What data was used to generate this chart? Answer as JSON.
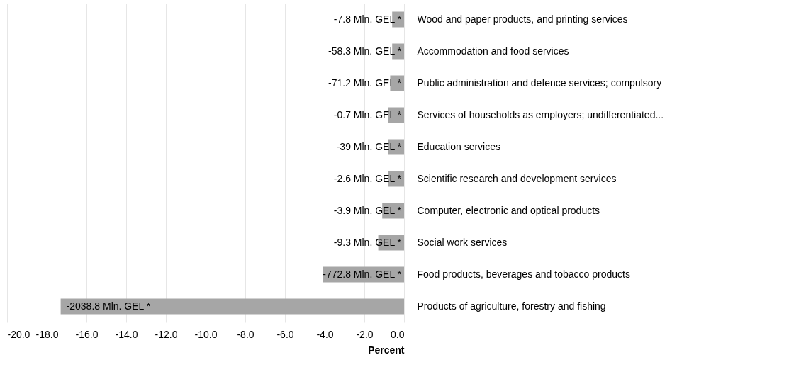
{
  "chart_data": {
    "type": "bar",
    "orientation": "horizontal",
    "xlabel": "Percent",
    "categories": [
      "Wood and paper products, and printing services",
      "Accommodation and food services",
      "Public administration and defence services; compulsory",
      "Services of households as employers; undifferentiated...",
      "Education services",
      "Scientific research and development services",
      "Computer, electronic and optical products",
      "Social work services",
      "Food products, beverages and tobacco products",
      "Products of agriculture, forestry and fishing"
    ],
    "values": [
      -0.6,
      -0.6,
      -0.7,
      -0.8,
      -0.8,
      -0.8,
      -1.1,
      -1.3,
      -4.1,
      -17.3
    ],
    "annotations": [
      {
        "text": "-7.8 Mln. GEL *",
        "x": -0.6,
        "y": "Wood and paper products, and printing services"
      },
      {
        "text": "-58.3 Mln. GEL *",
        "x": -0.6,
        "y": "Accommodation and food services"
      },
      {
        "text": "-71.2 Mln. GEL *",
        "x": -0.7,
        "y": "Public administration and defence services; compulsory"
      },
      {
        "text": "-0.7 Mln. GEL *",
        "x": -0.8,
        "y": "Services of households as employers; undifferentiated..."
      },
      {
        "text": "-39 Mln. GEL *",
        "x": -0.8,
        "y": "Education services"
      },
      {
        "text": "-2.6 Mln. GEL *",
        "x": -0.8,
        "y": "Scientific research and development services"
      },
      {
        "text": "-3.9 Mln. GEL *",
        "x": -1.1,
        "y": "Computer, electronic and optical products"
      },
      {
        "text": "-9.3 Mln. GEL *",
        "x": -1.3,
        "y": "Social work services"
      },
      {
        "text": "-772.8 Mln. GEL *",
        "x": -4.1,
        "y": "Food products, beverages and tobacco products"
      },
      {
        "text": "-2038.8 Mln. GEL *",
        "x": -17.3,
        "y": "Products of agriculture, forestry and fishing"
      }
    ],
    "color": "#a6a6a6",
    "xlim": [
      -20,
      0
    ],
    "xticks": [
      {
        "value": -20,
        "label": "-20.0"
      },
      {
        "value": -18,
        "label": "-18.0"
      },
      {
        "value": -16,
        "label": "-16.0"
      },
      {
        "value": -14,
        "label": "-14.0"
      },
      {
        "value": -12,
        "label": "-12.0"
      },
      {
        "value": -10,
        "label": "-10.0"
      },
      {
        "value": -8,
        "label": "-8.0"
      },
      {
        "value": -6,
        "label": "-6.0"
      },
      {
        "value": -4,
        "label": "-4.0"
      },
      {
        "value": -2,
        "label": "-2.0"
      },
      {
        "value": 0,
        "label": "0.0"
      }
    ],
    "grid": "x"
  }
}
